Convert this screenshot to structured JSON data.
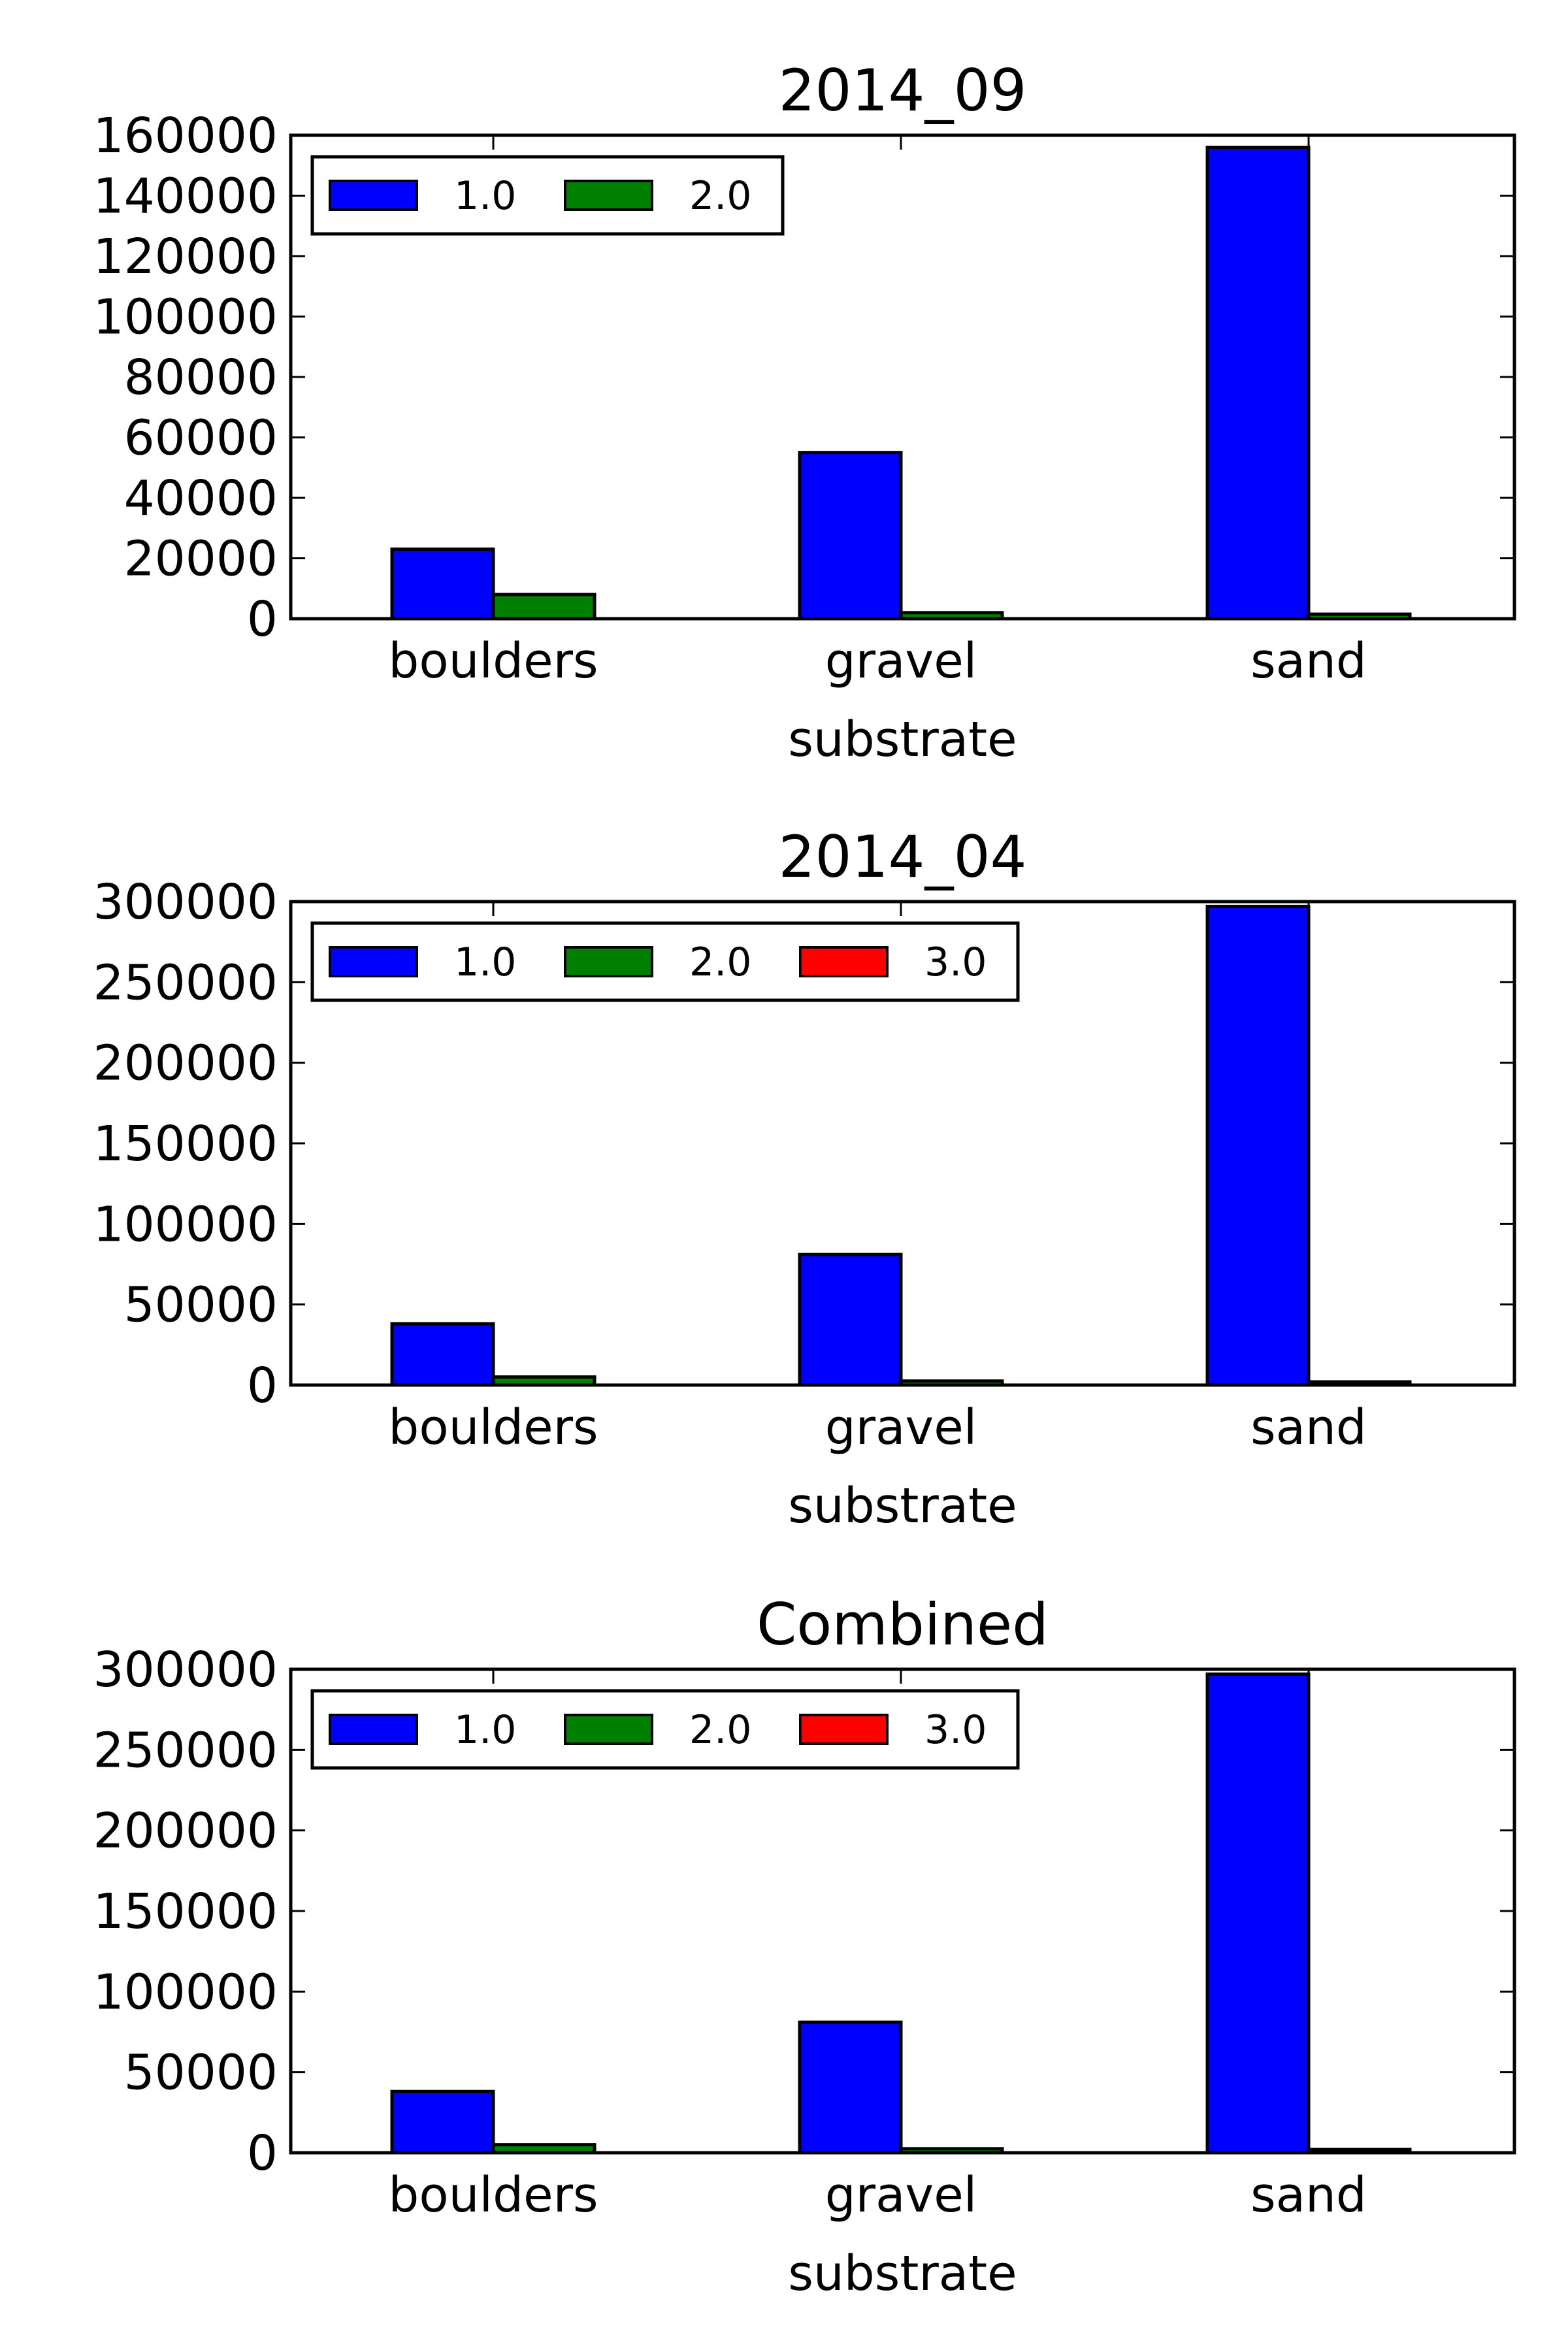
{
  "chart_data": [
    {
      "type": "bar",
      "title": "2014_09",
      "xlabel": "substrate",
      "ylabel": "",
      "categories": [
        "boulders",
        "gravel",
        "sand"
      ],
      "ylim": [
        0,
        160000
      ],
      "yticks": [
        0,
        20000,
        40000,
        60000,
        80000,
        100000,
        120000,
        140000,
        160000
      ],
      "legend_position": "top-left",
      "grid": false,
      "series": [
        {
          "name": "1.0",
          "color": "#0000ff",
          "values": [
            23000,
            55000,
            156000
          ]
        },
        {
          "name": "2.0",
          "color": "#008000",
          "values": [
            8000,
            2000,
            1500
          ]
        }
      ]
    },
    {
      "type": "bar",
      "title": "2014_04",
      "xlabel": "substrate",
      "ylabel": "",
      "categories": [
        "boulders",
        "gravel",
        "sand"
      ],
      "ylim": [
        0,
        300000
      ],
      "yticks": [
        0,
        50000,
        100000,
        150000,
        200000,
        250000,
        300000
      ],
      "legend_position": "top-left",
      "grid": false,
      "series": [
        {
          "name": "1.0",
          "color": "#0000ff",
          "values": [
            38000,
            81000,
            297000
          ]
        },
        {
          "name": "2.0",
          "color": "#008000",
          "values": [
            5000,
            2500,
            2000
          ]
        },
        {
          "name": "3.0",
          "color": "#ff0000",
          "values": [
            0,
            0,
            0
          ]
        }
      ]
    },
    {
      "type": "bar",
      "title": "Combined",
      "xlabel": "substrate",
      "ylabel": "",
      "categories": [
        "boulders",
        "gravel",
        "sand"
      ],
      "ylim": [
        0,
        300000
      ],
      "yticks": [
        0,
        50000,
        100000,
        150000,
        200000,
        250000,
        300000
      ],
      "legend_position": "top-left",
      "grid": false,
      "series": [
        {
          "name": "1.0",
          "color": "#0000ff",
          "values": [
            38000,
            81000,
            297000
          ]
        },
        {
          "name": "2.0",
          "color": "#008000",
          "values": [
            5000,
            2500,
            2000
          ]
        },
        {
          "name": "3.0",
          "color": "#ff0000",
          "values": [
            0,
            0,
            0
          ]
        }
      ]
    }
  ]
}
